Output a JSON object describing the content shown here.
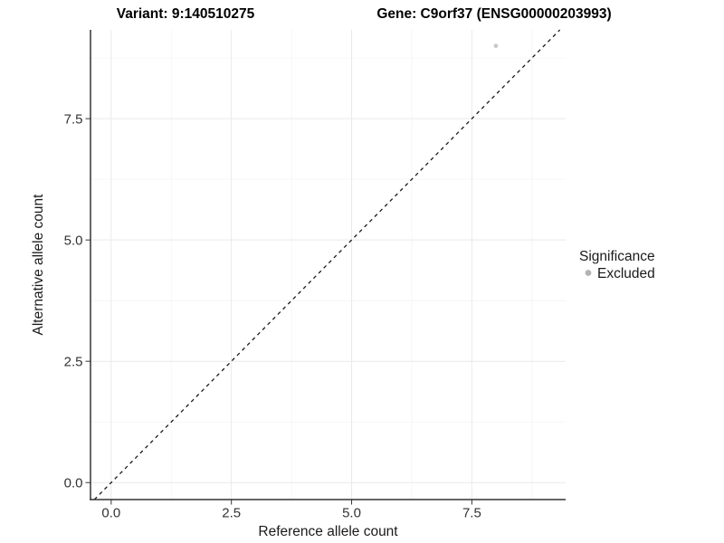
{
  "figure": {
    "background": "#ffffff"
  },
  "chart_data": {
    "type": "scatter",
    "titles": {
      "variant": "Variant: 9:140510275",
      "gene": "Gene: C9orf37 (ENSG00000203993)"
    },
    "xlabel": "Reference allele count",
    "ylabel": "Alternative allele count",
    "xlim": [
      -0.43,
      9.45
    ],
    "ylim": [
      -0.35,
      9.33
    ],
    "xticks": [
      0,
      2.5,
      5,
      7.5
    ],
    "xtick_labels": [
      "0.0",
      "2.5",
      "5.0",
      "7.5"
    ],
    "yticks": [
      0,
      2.5,
      5,
      7.5
    ],
    "ytick_labels": [
      "0.0",
      "2.5",
      "5.0",
      "7.5"
    ],
    "xticks_minor": [
      1.25,
      3.75,
      6.25,
      8.75
    ],
    "yticks_minor": [
      1.25,
      3.75,
      6.25,
      8.75
    ],
    "grid": "major+minor",
    "points": [
      {
        "x": 8,
        "y": 9,
        "series": "Excluded"
      }
    ],
    "reference_line": {
      "type": "identity y=x",
      "style": "dashed"
    },
    "legend": {
      "title": "Significance",
      "position": "right",
      "items": [
        {
          "label": "Excluded",
          "color": "#b3b3b3"
        }
      ]
    },
    "colors": {
      "point": "#c9c9c9",
      "axis_line": "#333333",
      "tick_text": "#333333",
      "grid_major": "#e9e9e9",
      "grid_minor": "#f4f4f4",
      "reference_line": "#1a1a1a",
      "title_text": "#000000"
    }
  }
}
